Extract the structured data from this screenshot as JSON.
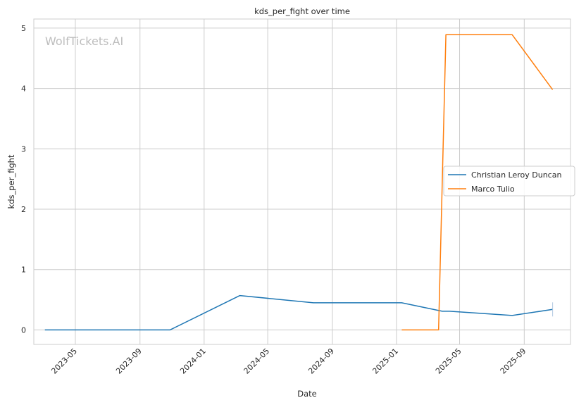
{
  "watermark": "WolfTickets.AI",
  "chart_data": {
    "type": "line",
    "title": "kds_per_fight over time",
    "xlabel": "Date",
    "ylabel": "kds_per_fight",
    "x_ticks": [
      "2023-05",
      "2023-09",
      "2024-01",
      "2024-05",
      "2024-09",
      "2025-01",
      "2025-05",
      "2025-09"
    ],
    "y_ticks": [
      0,
      1,
      2,
      3,
      4,
      5
    ],
    "xlim": [
      "2023-02-11",
      "2025-11-28"
    ],
    "ylim": [
      -0.24,
      5.15
    ],
    "grid": true,
    "legend_position": "center-right",
    "series": [
      {
        "name": "Christian Leroy Duncan",
        "color": "#1f77b4",
        "points": [
          {
            "x": "2023-03-04",
            "y": 0
          },
          {
            "x": "2023-10-28",
            "y": 0
          },
          {
            "x": "2024-03-09",
            "y": 0.57
          },
          {
            "x": "2024-07-27",
            "y": 0.45
          },
          {
            "x": "2025-01-11",
            "y": 0.45
          },
          {
            "x": "2025-03-29",
            "y": 0.31
          },
          {
            "x": "2025-04-12",
            "y": 0.31
          },
          {
            "x": "2025-08-09",
            "y": 0.24
          },
          {
            "x": "2025-10-25",
            "y": 0.34
          }
        ]
      },
      {
        "name": "Marco Tulio",
        "color": "#ff7f0e",
        "points": [
          {
            "x": "2025-01-11",
            "y": 0
          },
          {
            "x": "2025-03-22",
            "y": 0
          },
          {
            "x": "2025-04-05",
            "y": 4.89
          },
          {
            "x": "2025-08-09",
            "y": 4.89
          },
          {
            "x": "2025-10-25",
            "y": 3.98
          }
        ]
      }
    ]
  }
}
